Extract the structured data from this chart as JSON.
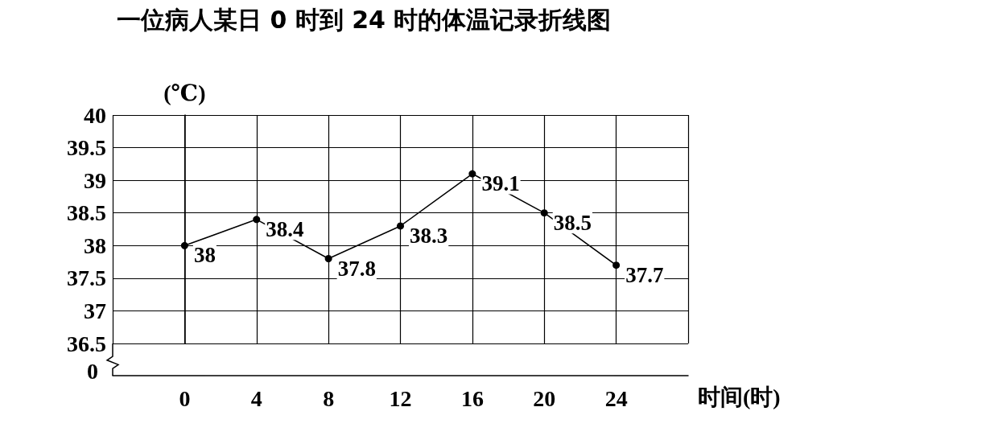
{
  "chart_data": {
    "type": "line",
    "title": "一位病人某日 0 时到 24 时的体温记录折线图",
    "xlabel": "时间(时)",
    "ylabel": "(℃)",
    "x": [
      0,
      4,
      8,
      12,
      16,
      20,
      24
    ],
    "series": [
      {
        "color": "#000000",
        "values": [
          38,
          38.4,
          37.8,
          38.3,
          39.1,
          38.5,
          37.7
        ]
      }
    ],
    "xlim": [
      -4,
      28
    ],
    "xticks": [
      {
        "value": -4,
        "label": null
      },
      0,
      4,
      8,
      12,
      16,
      20,
      24,
      {
        "value": 28,
        "label": null
      }
    ],
    "ylim": [
      36.5,
      40
    ],
    "yticks": [
      36.5,
      37,
      37.5,
      38,
      38.5,
      39,
      39.5,
      40
    ],
    "annotations": [
      "0"
    ],
    "grid": true,
    "marker": "circle",
    "line_style": "solid",
    "data_labels": true
  }
}
